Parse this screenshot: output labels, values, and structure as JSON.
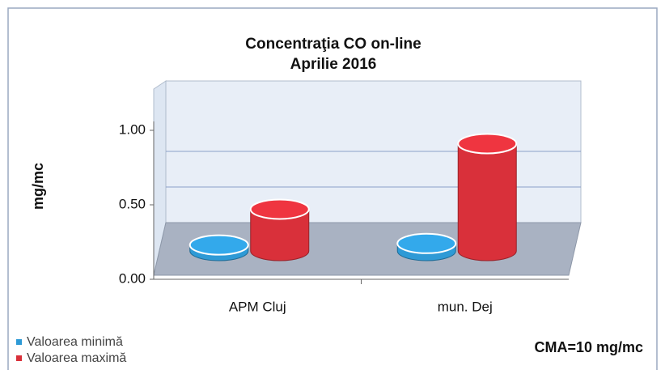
{
  "chart_data": {
    "type": "bar3d",
    "title": "Concentraţia CO on-line",
    "subtitle": "Aprilie 2016",
    "y_label": "mg/mc",
    "annotation": "CMA=10 mg/mc",
    "categories": [
      "APM Cluj",
      "mun. Dej"
    ],
    "series": [
      {
        "name": "Valoarea minimă",
        "color": "#2e9ad6",
        "values": [
          0.04,
          0.05
        ]
      },
      {
        "name": "Valoarea maximă",
        "color": "#d9303a",
        "values": [
          0.28,
          0.72
        ]
      }
    ],
    "ylim": [
      0,
      1
    ],
    "yticks": [
      {
        "value": 0,
        "label": "0.00"
      },
      {
        "value": 0.5,
        "label": "0.50"
      },
      {
        "value": 1,
        "label": "1.00"
      }
    ],
    "grid": true
  }
}
